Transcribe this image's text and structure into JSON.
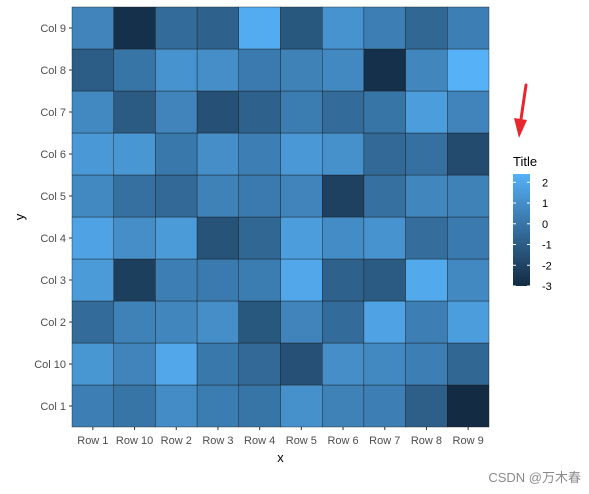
{
  "chart_data": {
    "type": "heatmap",
    "title": "",
    "xlabel": "x",
    "ylabel": "y",
    "x_categories": [
      "Row 1",
      "Row 10",
      "Row 2",
      "Row 3",
      "Row 4",
      "Row 5",
      "Row 6",
      "Row 7",
      "Row 8",
      "Row 9"
    ],
    "y_categories": [
      "Col 1",
      "Col 10",
      "Col 2",
      "Col 3",
      "Col 4",
      "Col 5",
      "Col 6",
      "Col 7",
      "Col 8",
      "Col 9"
    ],
    "values": [
      [
        0.4,
        0.0,
        0.9,
        0.3,
        0.0,
        1.1,
        0.5,
        0.4,
        -0.9,
        -3.0
      ],
      [
        1.3,
        0.6,
        2.0,
        0.1,
        -0.5,
        -1.5,
        1.0,
        0.8,
        0.4,
        -0.6
      ],
      [
        -0.4,
        0.5,
        0.7,
        1.0,
        -1.2,
        0.6,
        -0.4,
        1.8,
        0.4,
        1.6
      ],
      [
        1.5,
        -2.2,
        0.4,
        0.2,
        0.3,
        2.0,
        -0.8,
        -1.1,
        2.1,
        0.8
      ],
      [
        1.8,
        1.0,
        1.5,
        -1.4,
        -0.6,
        1.6,
        0.9,
        1.2,
        -0.3,
        0.2
      ],
      [
        0.8,
        -0.2,
        -0.5,
        0.5,
        0.2,
        0.6,
        -2.1,
        -0.2,
        0.7,
        0.5
      ],
      [
        1.4,
        1.3,
        0.1,
        1.0,
        0.4,
        1.4,
        1.1,
        -0.5,
        -0.2,
        -1.7
      ],
      [
        0.8,
        -1.1,
        0.6,
        -1.5,
        -0.8,
        0.3,
        -0.4,
        0.0,
        1.6,
        0.6
      ],
      [
        -1.0,
        0.0,
        1.2,
        1.0,
        0.2,
        0.5,
        0.8,
        -2.8,
        0.7,
        2.4
      ],
      [
        0.6,
        -2.8,
        -0.4,
        -0.8,
        2.2,
        -1.2,
        1.2,
        0.4,
        -0.6,
        0.4
      ]
    ],
    "color_scale": {
      "low_color": "#132b43",
      "high_color": "#56b1f7",
      "limits": [
        -3.0,
        2.4
      ],
      "breaks": [
        2,
        1,
        0,
        -1,
        -2,
        -3
      ]
    },
    "panel_background": "#ebebeb",
    "legend_title": "Title",
    "legend_position": "right"
  },
  "watermark": "CSDN @万木春"
}
